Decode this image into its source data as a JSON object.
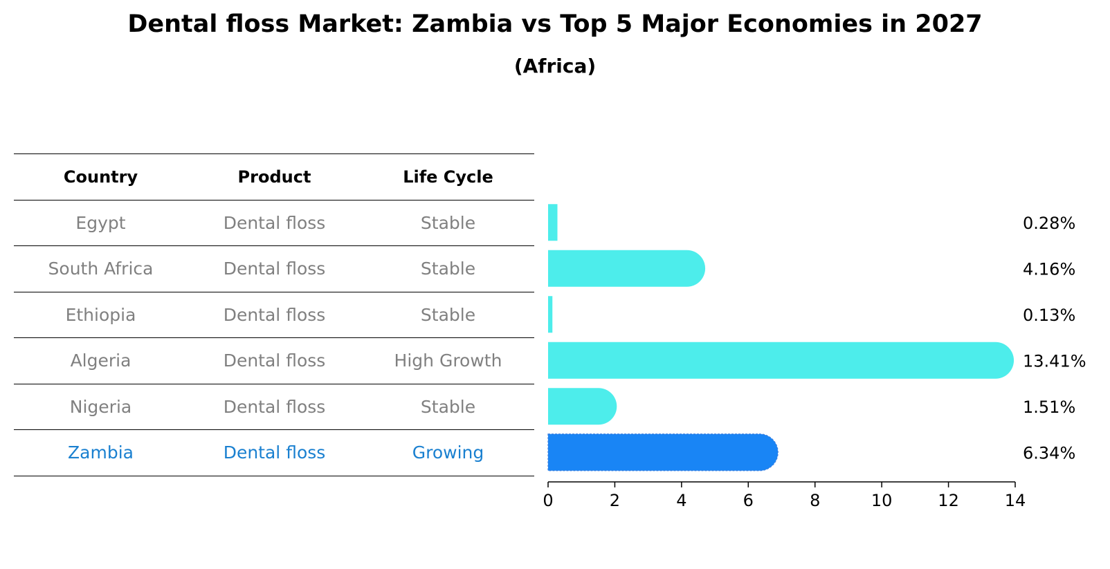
{
  "title": "Dental floss Market: Zambia vs Top 5 Major Economies in 2027",
  "subtitle": "(Africa)",
  "colors": {
    "bar": "#4DEDEB",
    "highlight_bar": "#1985F5",
    "highlight_text": "#1A80D0",
    "muted_text": "#808080"
  },
  "table": {
    "headers": [
      "Country",
      "Product",
      "Life Cycle"
    ],
    "rows": [
      {
        "country": "Egypt",
        "product": "Dental floss",
        "life_cycle": "Stable",
        "highlight": false
      },
      {
        "country": "South Africa",
        "product": "Dental floss",
        "life_cycle": "Stable",
        "highlight": false
      },
      {
        "country": "Ethiopia",
        "product": "Dental floss",
        "life_cycle": "Stable",
        "highlight": false
      },
      {
        "country": "Algeria",
        "product": "Dental floss",
        "life_cycle": "High Growth",
        "highlight": false
      },
      {
        "country": "Nigeria",
        "product": "Dental floss",
        "life_cycle": "Stable",
        "highlight": false
      },
      {
        "country": "Zambia",
        "product": "Dental floss",
        "life_cycle": "Growing",
        "highlight": true
      }
    ]
  },
  "chart_data": {
    "type": "bar",
    "orientation": "horizontal",
    "categories": [
      "Egypt",
      "South Africa",
      "Ethiopia",
      "Algeria",
      "Nigeria",
      "Zambia"
    ],
    "values": [
      0.28,
      4.16,
      0.13,
      13.41,
      1.51,
      6.34
    ],
    "value_labels": [
      "0.28%",
      "4.16%",
      "0.13%",
      "13.41%",
      "1.51%",
      "6.34%"
    ],
    "highlight_category": "Zambia",
    "xlim": [
      0,
      14
    ],
    "x_ticks": [
      0,
      2,
      4,
      6,
      8,
      10,
      12,
      14
    ],
    "title": "Dental floss Market: Zambia vs Top 5 Major Economies in 2027",
    "subtitle": "(Africa)",
    "grid": false
  }
}
